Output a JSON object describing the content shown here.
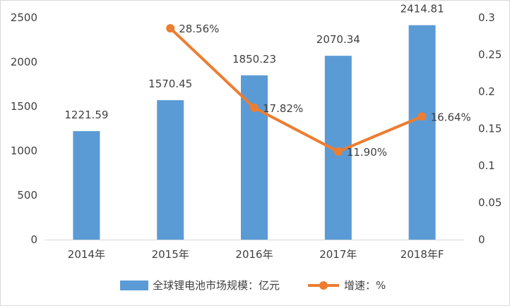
{
  "chart_data": {
    "type": "bar",
    "categories": [
      "2014年",
      "2015年",
      "2016年",
      "2017年",
      "2018年F"
    ],
    "series": [
      {
        "name": "全球锂电池市场规模：亿元",
        "type": "bar",
        "axis": "left",
        "values": [
          1221.59,
          1570.45,
          1850.23,
          2070.34,
          2414.81
        ],
        "labels": [
          "1221.59",
          "1570.45",
          "1850.23",
          "2070.34",
          "2414.81"
        ],
        "color": "#5b9bd5"
      },
      {
        "name": "增速：%",
        "type": "line",
        "axis": "right",
        "values": [
          null,
          0.2856,
          0.1782,
          0.119,
          0.1664
        ],
        "labels": [
          "",
          "28.56%",
          "17.82%",
          "11.90%",
          "16.64%"
        ],
        "color": "#ed7d31"
      }
    ],
    "y_left": {
      "ylim": [
        0,
        2500
      ],
      "ticks": [
        "0",
        "500",
        "1000",
        "1500",
        "2000",
        "2500"
      ]
    },
    "y_right": {
      "ylim": [
        0,
        0.3
      ],
      "ticks": [
        "0",
        "0.05",
        "0.1",
        "0.15",
        "0.2",
        "0.25",
        "0.3"
      ]
    },
    "grid": false,
    "legend": "bottom",
    "title": "",
    "xlabel": "",
    "ylabel": ""
  }
}
